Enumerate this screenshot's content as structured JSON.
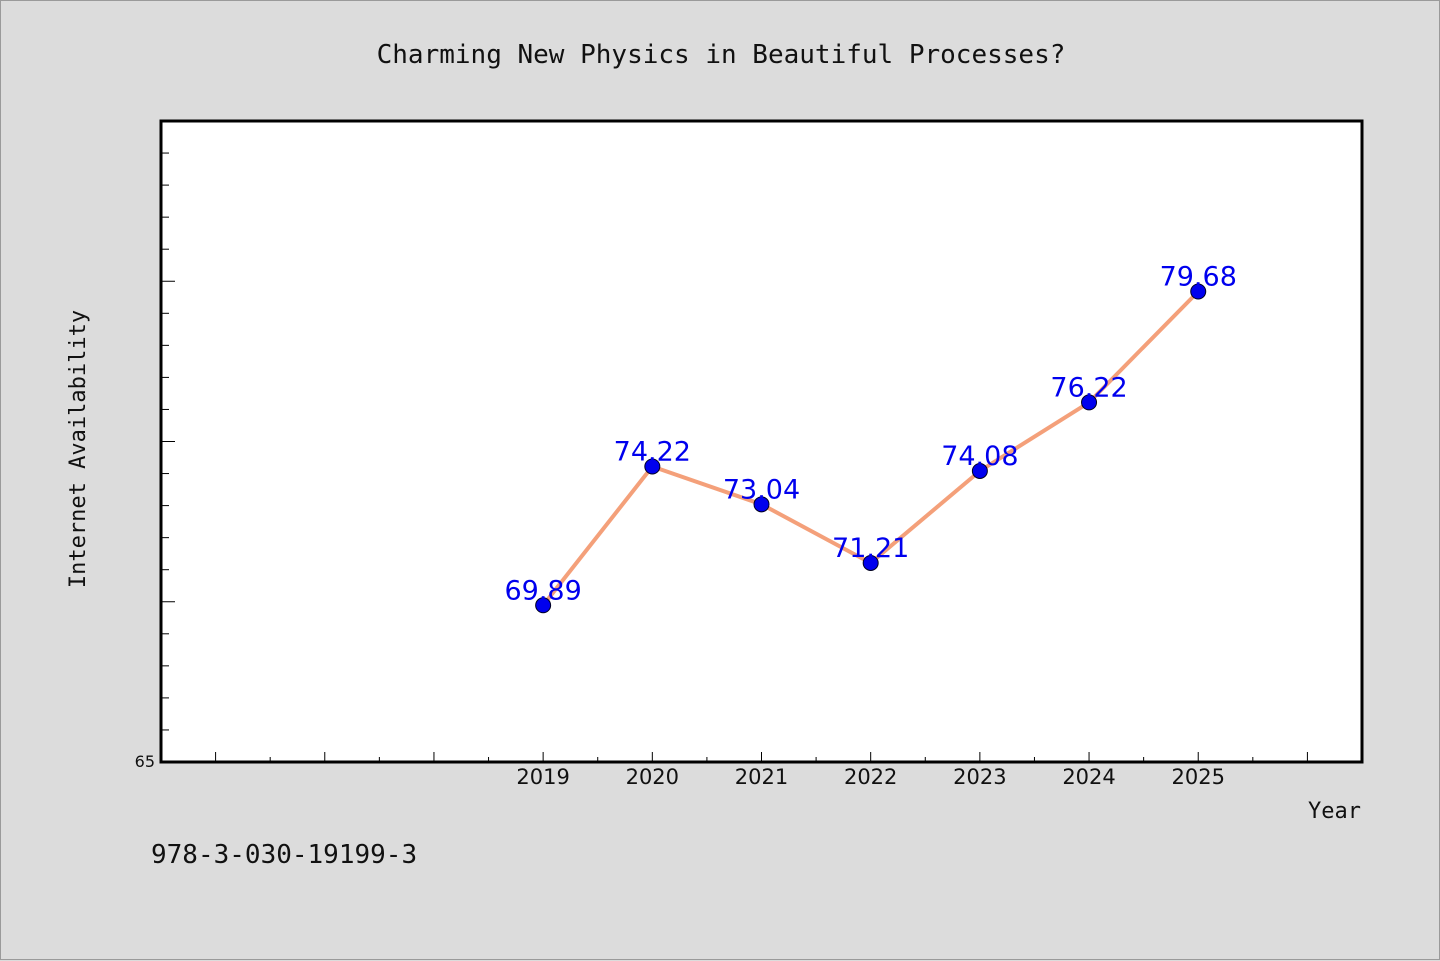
{
  "chart_data": {
    "type": "line",
    "title": "Charming New Physics in Beautiful Processes?",
    "xlabel": "Year",
    "ylabel": "Internet Availability",
    "categories": [
      "2019",
      "2020",
      "2021",
      "2022",
      "2023",
      "2024",
      "2025"
    ],
    "series": [
      {
        "values": [
          69.89,
          74.22,
          73.04,
          71.21,
          74.08,
          76.22,
          79.68
        ]
      }
    ],
    "data_labels": [
      "69.89",
      "74.22",
      "73.04",
      "71.21",
      "74.08",
      "76.22",
      "79.68"
    ],
    "y_tick_labels": [
      "65"
    ],
    "ylim": [
      65,
      85
    ],
    "xlim": [
      2015.5,
      2026.5
    ],
    "grid": false,
    "legend": false,
    "colors": {
      "line": "#f4a07a",
      "marker": "#0000ee",
      "data_label": "#0000ee",
      "plot_background": "#ffffff",
      "page_background": "#dcdcdc"
    }
  },
  "footer_text": "978-3-030-19199-3"
}
